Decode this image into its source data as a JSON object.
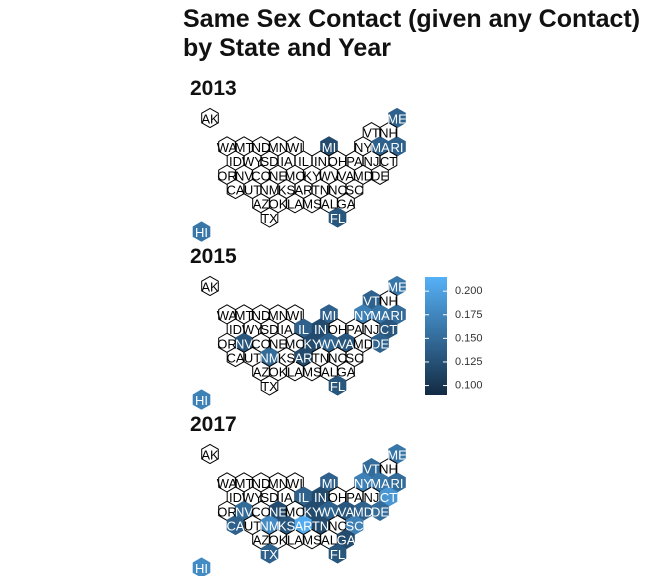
{
  "chart_data": {
    "type": "heatmap",
    "title": "Same Sex Contact (given any Contact) by State and Year",
    "title_lines": [
      "Same Sex Contact (given any Contact)",
      "by State and Year"
    ],
    "legend": {
      "ticks": [
        "0.200",
        "0.175",
        "0.150",
        "0.125",
        "0.100"
      ],
      "tick_values": [
        0.2,
        0.175,
        0.15,
        0.125,
        0.1
      ],
      "range": [
        0.09,
        0.215
      ],
      "low_color": "#132B43",
      "high_color": "#56B1F7",
      "placement": "right"
    },
    "na_color": "#ffffff",
    "na_stroke": "#000000",
    "states": [
      {
        "abbr": "AK",
        "col": 0,
        "row": 0
      },
      {
        "abbr": "ME",
        "col": 11,
        "row": 0
      },
      {
        "abbr": "VT",
        "col": 9.5,
        "row": 1
      },
      {
        "abbr": "NH",
        "col": 10.5,
        "row": 1
      },
      {
        "abbr": "WA",
        "col": 1,
        "row": 2
      },
      {
        "abbr": "MT",
        "col": 2,
        "row": 2
      },
      {
        "abbr": "ND",
        "col": 3,
        "row": 2
      },
      {
        "abbr": "MN",
        "col": 4,
        "row": 2
      },
      {
        "abbr": "WI",
        "col": 5,
        "row": 2
      },
      {
        "abbr": "MI",
        "col": 7,
        "row": 2
      },
      {
        "abbr": "NY",
        "col": 9,
        "row": 2
      },
      {
        "abbr": "MA",
        "col": 10,
        "row": 2
      },
      {
        "abbr": "RI",
        "col": 11,
        "row": 2
      },
      {
        "abbr": "ID",
        "col": 1.5,
        "row": 3
      },
      {
        "abbr": "WY",
        "col": 2.5,
        "row": 3
      },
      {
        "abbr": "SD",
        "col": 3.5,
        "row": 3
      },
      {
        "abbr": "IA",
        "col": 4.5,
        "row": 3
      },
      {
        "abbr": "IL",
        "col": 5.5,
        "row": 3
      },
      {
        "abbr": "IN",
        "col": 6.5,
        "row": 3
      },
      {
        "abbr": "OH",
        "col": 7.5,
        "row": 3
      },
      {
        "abbr": "PA",
        "col": 8.5,
        "row": 3
      },
      {
        "abbr": "NJ",
        "col": 9.5,
        "row": 3
      },
      {
        "abbr": "CT",
        "col": 10.5,
        "row": 3
      },
      {
        "abbr": "OR",
        "col": 1,
        "row": 4
      },
      {
        "abbr": "NV",
        "col": 2,
        "row": 4
      },
      {
        "abbr": "CO",
        "col": 3,
        "row": 4
      },
      {
        "abbr": "NE",
        "col": 4,
        "row": 4
      },
      {
        "abbr": "MO",
        "col": 5,
        "row": 4
      },
      {
        "abbr": "KY",
        "col": 6,
        "row": 4
      },
      {
        "abbr": "WV",
        "col": 7,
        "row": 4
      },
      {
        "abbr": "VA",
        "col": 8,
        "row": 4
      },
      {
        "abbr": "MD",
        "col": 9,
        "row": 4
      },
      {
        "abbr": "DE",
        "col": 10,
        "row": 4
      },
      {
        "abbr": "CA",
        "col": 1.5,
        "row": 5
      },
      {
        "abbr": "UT",
        "col": 2.5,
        "row": 5
      },
      {
        "abbr": "NM",
        "col": 3.5,
        "row": 5
      },
      {
        "abbr": "KS",
        "col": 4.5,
        "row": 5
      },
      {
        "abbr": "AR",
        "col": 5.5,
        "row": 5
      },
      {
        "abbr": "TN",
        "col": 6.5,
        "row": 5
      },
      {
        "abbr": "NC",
        "col": 7.5,
        "row": 5
      },
      {
        "abbr": "SC",
        "col": 8.5,
        "row": 5
      },
      {
        "abbr": "AZ",
        "col": 3,
        "row": 6
      },
      {
        "abbr": "OK",
        "col": 4,
        "row": 6
      },
      {
        "abbr": "LA",
        "col": 5,
        "row": 6
      },
      {
        "abbr": "MS",
        "col": 6,
        "row": 6
      },
      {
        "abbr": "AL",
        "col": 7,
        "row": 6
      },
      {
        "abbr": "GA",
        "col": 8,
        "row": 6
      },
      {
        "abbr": "TX",
        "col": 3.5,
        "row": 7
      },
      {
        "abbr": "FL",
        "col": 7.5,
        "row": 7
      },
      {
        "abbr": "HI",
        "col": -0.5,
        "row": 8
      }
    ],
    "panels": [
      {
        "year": "2013",
        "values": {
          "ME": 0.14,
          "MI": 0.12,
          "MA": 0.14,
          "RI": 0.14,
          "FL": 0.13,
          "HI": 0.16
        }
      },
      {
        "year": "2015",
        "values": {
          "ME": 0.16,
          "VT": 0.14,
          "MI": 0.14,
          "NY": 0.17,
          "MA": 0.16,
          "RI": 0.15,
          "IL": 0.14,
          "IN": 0.12,
          "CT": 0.13,
          "NV": 0.13,
          "KY": 0.12,
          "WV": 0.14,
          "VA": 0.13,
          "DE": 0.14,
          "NM": 0.15,
          "AR": 0.12,
          "FL": 0.13,
          "HI": 0.17
        }
      },
      {
        "year": "2017",
        "values": {
          "ME": 0.16,
          "VT": 0.15,
          "MI": 0.14,
          "NY": 0.17,
          "MA": 0.16,
          "RI": 0.15,
          "IL": 0.14,
          "IN": 0.12,
          "CT": 0.19,
          "NV": 0.15,
          "NE": 0.12,
          "KY": 0.12,
          "WV": 0.14,
          "VA": 0.13,
          "MD": 0.14,
          "DE": 0.15,
          "CA": 0.14,
          "NM": 0.18,
          "KS": 0.13,
          "AR": 0.21,
          "TN": 0.12,
          "SC": 0.17,
          "TX": 0.14,
          "GA": 0.12,
          "FL": 0.13,
          "HI": 0.18
        }
      }
    ]
  }
}
